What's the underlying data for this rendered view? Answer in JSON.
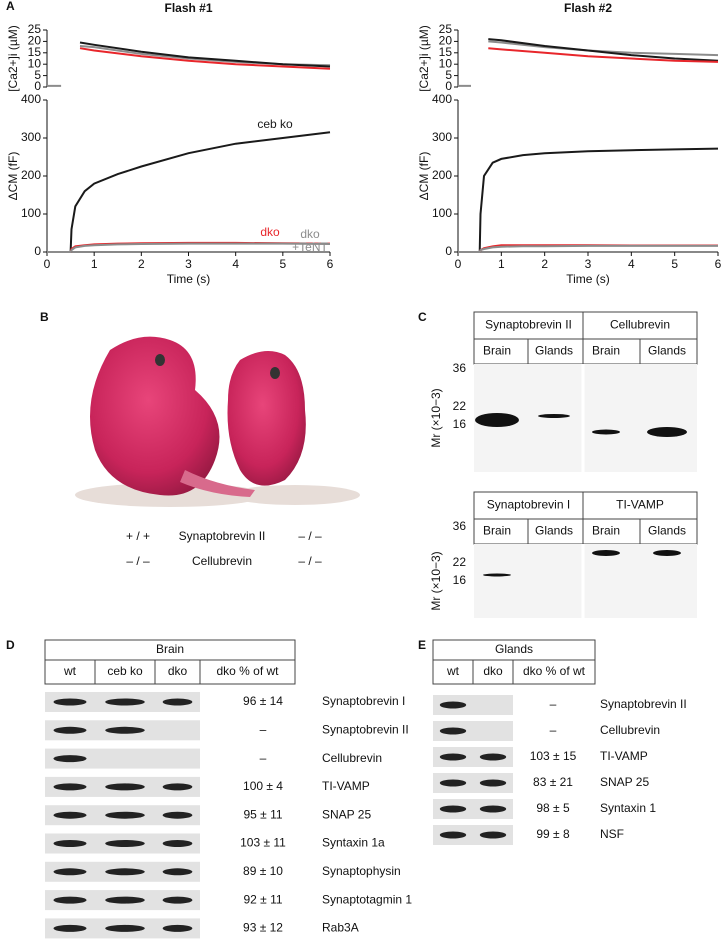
{
  "chart_data": [
    {
      "type": "line",
      "title": "Flash #1",
      "y_label": "[Ca2+]i (µM)",
      "x": [
        0,
        0.3,
        0.5,
        0.7,
        1,
        2,
        3,
        4,
        5,
        6
      ],
      "series": [
        {
          "color": "#8c8c8c",
          "values": [
            0.5,
            0.5,
            null,
            18,
            17.5,
            14.5,
            12.5,
            11,
            10,
            9.5
          ]
        },
        {
          "color": "#1a1a1a",
          "values": [
            null,
            null,
            null,
            19.5,
            18.5,
            15.5,
            13,
            11.5,
            10,
            9
          ]
        },
        {
          "color": "#e8262b",
          "values": [
            null,
            null,
            null,
            17,
            16,
            13.5,
            11.5,
            10,
            9,
            8
          ]
        }
      ],
      "xlim": [
        0,
        6
      ],
      "ylim": [
        0,
        25
      ],
      "yticks": [
        0,
        5,
        10,
        15,
        20,
        25
      ]
    },
    {
      "type": "line",
      "y_label": "ΔCM (fF)",
      "x_label": "Time (s)",
      "x": [
        0,
        0.5,
        0.52,
        0.6,
        0.8,
        1,
        1.5,
        2,
        3,
        4,
        5,
        6
      ],
      "series": [
        {
          "name": "ceb ko",
          "color": "#1a1a1a",
          "values": [
            0,
            0,
            60,
            120,
            160,
            180,
            205,
            225,
            260,
            285,
            300,
            315
          ]
        },
        {
          "name": "dko",
          "color": "#e8262b",
          "values": [
            0,
            0,
            8,
            15,
            18,
            20,
            22,
            23,
            24,
            24,
            23,
            22
          ]
        },
        {
          "name": "dko +TeNT",
          "color": "#8c8c8c",
          "values": [
            0,
            0,
            5,
            12,
            16,
            18,
            20,
            21,
            22,
            22,
            22,
            21
          ]
        }
      ],
      "xlim": [
        0,
        6
      ],
      "xticks": [
        0,
        1,
        2,
        3,
        4,
        5,
        6
      ],
      "ylim": [
        0,
        400
      ],
      "yticks": [
        0,
        100,
        200,
        300,
        400
      ]
    },
    {
      "type": "line",
      "title": "Flash #2",
      "y_label": "[Ca2+]i (µM)",
      "x": [
        0,
        0.3,
        0.5,
        0.7,
        1,
        2,
        3,
        4,
        5,
        6
      ],
      "series": [
        {
          "color": "#8c8c8c",
          "values": [
            0.5,
            0.5,
            null,
            20,
            19.5,
            17.5,
            16,
            15,
            14.5,
            14
          ]
        },
        {
          "color": "#1a1a1a",
          "values": [
            null,
            null,
            null,
            21,
            20.5,
            18,
            16,
            14,
            12.5,
            11.5
          ]
        },
        {
          "color": "#e8262b",
          "values": [
            null,
            null,
            null,
            17,
            16.5,
            15,
            13.5,
            12.5,
            11.5,
            11
          ]
        }
      ],
      "xlim": [
        0,
        6
      ],
      "ylim": [
        0,
        25
      ],
      "yticks": [
        0,
        5,
        10,
        15,
        20,
        25
      ]
    },
    {
      "type": "line",
      "y_label": "ΔCM (fF)",
      "x_label": "Time (s)",
      "x": [
        0,
        0.5,
        0.52,
        0.6,
        0.8,
        1,
        1.5,
        2,
        3,
        4,
        5,
        6
      ],
      "series": [
        {
          "color": "#1a1a1a",
          "values": [
            0,
            0,
            100,
            200,
            235,
            245,
            255,
            260,
            265,
            268,
            270,
            272
          ]
        },
        {
          "color": "#e8262b",
          "values": [
            0,
            0,
            5,
            10,
            15,
            18,
            18,
            18,
            18,
            17,
            17,
            17
          ]
        },
        {
          "color": "#8c8c8c",
          "values": [
            0,
            0,
            5,
            8,
            12,
            14,
            15,
            15,
            16,
            16,
            16,
            16
          ]
        }
      ],
      "xlim": [
        0,
        6
      ],
      "xticks": [
        0,
        1,
        2,
        3,
        4,
        5,
        6
      ],
      "ylim": [
        0,
        400
      ],
      "yticks": [
        0,
        100,
        200,
        300,
        400
      ]
    }
  ],
  "panel_labels": [
    "A",
    "B",
    "C",
    "D",
    "E"
  ],
  "panel_b": {
    "genotypes": [
      {
        "left": "+ / +",
        "gene": "Synaptobrevin II",
        "right": "– / –"
      },
      {
        "left": "– / –",
        "gene": "Cellubrevin",
        "right": "– / –"
      }
    ]
  },
  "panel_c": {
    "y_label": "Mr (×10−3)",
    "blots": [
      {
        "proteins": [
          "Synaptobrevin II",
          "Cellubrevin"
        ],
        "lanes": [
          "Brain",
          "Glands",
          "Brain",
          "Glands"
        ],
        "markers": [
          36,
          22,
          16
        ]
      },
      {
        "proteins": [
          "Synaptobrevin I",
          "TI-VAMP"
        ],
        "lanes": [
          "Brain",
          "Glands",
          "Brain",
          "Glands"
        ],
        "markers": [
          36,
          22,
          16
        ]
      }
    ]
  },
  "panel_d": {
    "title": "Brain",
    "columns": [
      "wt",
      "ceb ko",
      "dko",
      "dko % of wt"
    ],
    "rows": [
      {
        "value": "96 ± 14",
        "protein": "Synaptobrevin I"
      },
      {
        "value": "–",
        "protein": "Synaptobrevin II"
      },
      {
        "value": "–",
        "protein": "Cellubrevin"
      },
      {
        "value": "100 ± 4",
        "protein": "TI-VAMP"
      },
      {
        "value": "95 ± 11",
        "protein": "SNAP 25"
      },
      {
        "value": "103 ± 11",
        "protein": "Syntaxin 1a"
      },
      {
        "value": "89 ± 10",
        "protein": "Synaptophysin"
      },
      {
        "value": "92 ± 11",
        "protein": "Synaptotagmin 1"
      },
      {
        "value": "93 ± 12",
        "protein": "Rab3A"
      }
    ]
  },
  "panel_e": {
    "title": "Glands",
    "columns": [
      "wt",
      "dko",
      "dko % of wt"
    ],
    "rows": [
      {
        "value": "–",
        "protein": "Synaptobrevin II"
      },
      {
        "value": "–",
        "protein": "Cellubrevin"
      },
      {
        "value": "103 ± 15",
        "protein": "TI-VAMP"
      },
      {
        "value": "83 ± 21",
        "protein": "SNAP 25"
      },
      {
        "value": "98 ± 5",
        "protein": "Syntaxin 1"
      },
      {
        "value": "99 ± 8",
        "protein": "NSF"
      }
    ]
  }
}
